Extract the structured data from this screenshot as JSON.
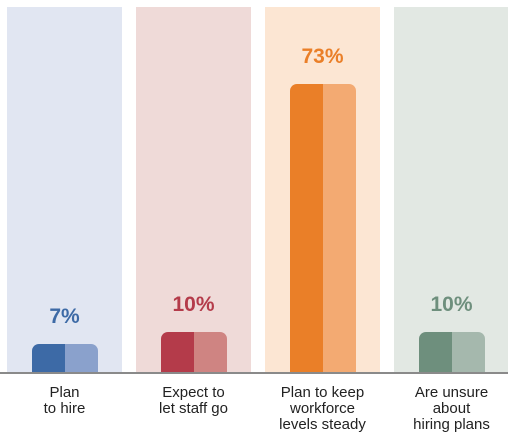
{
  "chart_data": {
    "type": "bar",
    "categories": [
      "Plan\nto hire",
      "Expect to\nlet staff go",
      "Plan to keep\nworkforce\nlevels steady",
      "Are unsure\nabout\nhiring plans"
    ],
    "values": [
      7,
      10,
      73,
      10
    ],
    "value_labels": [
      "7%",
      "10%",
      "73%",
      "10%"
    ],
    "ylim": [
      0,
      100
    ],
    "unit": "%",
    "grid": false,
    "legend": "none",
    "colors": [
      {
        "panel": "#e1e6f2",
        "bar_dark": "#3d6aa6",
        "bar_light": "#8aa1cc",
        "label": "#3d6aa6"
      },
      {
        "panel": "#efdad8",
        "bar_dark": "#b43b4a",
        "bar_light": "#cf8482",
        "label": "#b43b4a"
      },
      {
        "panel": "#fce6d3",
        "bar_dark": "#ea7f28",
        "bar_light": "#f3aa72",
        "label": "#ea7f28"
      },
      {
        "panel": "#e2e8e3",
        "bar_dark": "#6e8f7d",
        "bar_light": "#a5b8ad",
        "label": "#6e8f7d"
      }
    ],
    "baseline_color": "#8a8a8a"
  }
}
